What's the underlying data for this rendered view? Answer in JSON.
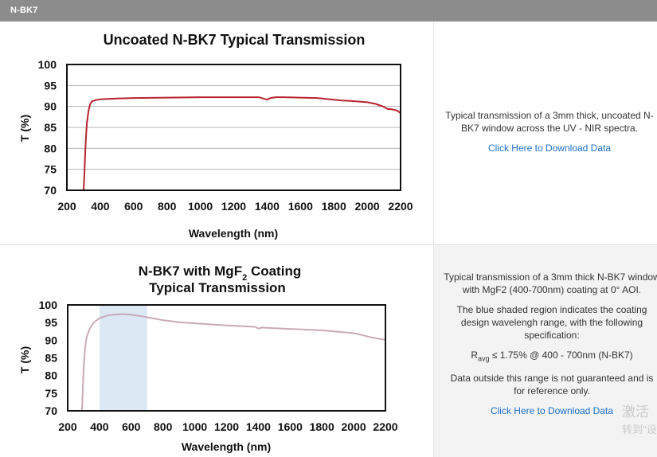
{
  "header": {
    "title": "N-BK7"
  },
  "charts": [
    {
      "title": "Uncoated N-BK7 Typical Transmission",
      "description": "Typical transmission of a 3mm thick, uncoated N-BK7 window across the UV - NIR spectra.",
      "link_label": "Click Here to Download Data"
    },
    {
      "title_parts": {
        "main": "N-BK7 with MgF",
        "sub": "2",
        "tail": " Coating",
        "line2": "Typical Transmission"
      },
      "description_1": "Typical transmission of a 3mm thick N-BK7 window with MgF2 (400-700nm) coating at 0° AOI.",
      "description_2": "The blue shaded region indicates the coating design wavelengh range, with the following specification:",
      "spec_prefix": "R",
      "spec_sub": "avg",
      "spec_rest": " ≤ 1.75% @ 400 - 700nm (N-BK7)",
      "description_3": "Data outside this range is not guaranteed and is for reference only.",
      "link_label": "Click Here to Download Data"
    }
  ],
  "watermark": {
    "line1": "激活",
    "line2": "转到\"设"
  },
  "chart_data": [
    {
      "type": "line",
      "title": "Uncoated N-BK7 Typical Transmission",
      "xlabel": "Wavelength (nm)",
      "ylabel": "T (%)",
      "xlim": [
        200,
        2200
      ],
      "ylim": [
        70,
        100
      ],
      "x_ticks": [
        200,
        400,
        600,
        800,
        1000,
        1200,
        1400,
        1600,
        1800,
        2000,
        2200
      ],
      "y_ticks": [
        70,
        75,
        80,
        85,
        90,
        95,
        100
      ],
      "grid": "horizontal",
      "color": "#b8232f",
      "series": [
        {
          "x": [
            300,
            305,
            310,
            315,
            320,
            330,
            340,
            350,
            370,
            400,
            500,
            600,
            800,
            1000,
            1200,
            1350,
            1400,
            1420,
            1450,
            1500,
            1600,
            1700,
            1800,
            1850,
            1900,
            2000,
            2050,
            2100,
            2120,
            2150,
            2180,
            2200
          ],
          "y": [
            70,
            74,
            79,
            83,
            86,
            89,
            90.6,
            91.2,
            91.5,
            91.7,
            91.9,
            92.0,
            92.1,
            92.2,
            92.2,
            92.2,
            91.6,
            92.0,
            92.2,
            92.2,
            92.1,
            92.0,
            91.6,
            91.4,
            91.3,
            91.0,
            90.6,
            89.9,
            89.4,
            89.3,
            89.0,
            88.4
          ]
        }
      ]
    },
    {
      "type": "line",
      "title": "N-BK7 with MgF2 Coating Typical Transmission",
      "xlabel": "Wavelength (nm)",
      "ylabel": "T (%)",
      "xlim": [
        200,
        2200
      ],
      "ylim": [
        70,
        100
      ],
      "x_ticks": [
        200,
        400,
        600,
        800,
        1000,
        1200,
        1400,
        1600,
        1800,
        2000,
        2200
      ],
      "y_ticks": [
        70,
        75,
        80,
        85,
        90,
        95,
        100
      ],
      "grid": "none",
      "color": "#c9aab7",
      "shaded_region": [
        400,
        700
      ],
      "shade_color": "#dce9f5",
      "series": [
        {
          "x": [
            290,
            295,
            300,
            310,
            320,
            340,
            360,
            380,
            400,
            450,
            500,
            550,
            600,
            650,
            700,
            800,
            900,
            1000,
            1200,
            1380,
            1400,
            1420,
            1500,
            1600,
            1800,
            2000,
            2050,
            2100,
            2150,
            2200
          ],
          "y": [
            70,
            76,
            82,
            88,
            91,
            93.3,
            94.8,
            95.6,
            96.2,
            97.0,
            97.3,
            97.4,
            97.2,
            96.9,
            96.5,
            95.7,
            95.1,
            94.8,
            94.2,
            93.8,
            93.3,
            93.6,
            93.4,
            93.2,
            92.8,
            92.0,
            91.5,
            90.9,
            90.5,
            90.1
          ]
        }
      ]
    }
  ]
}
